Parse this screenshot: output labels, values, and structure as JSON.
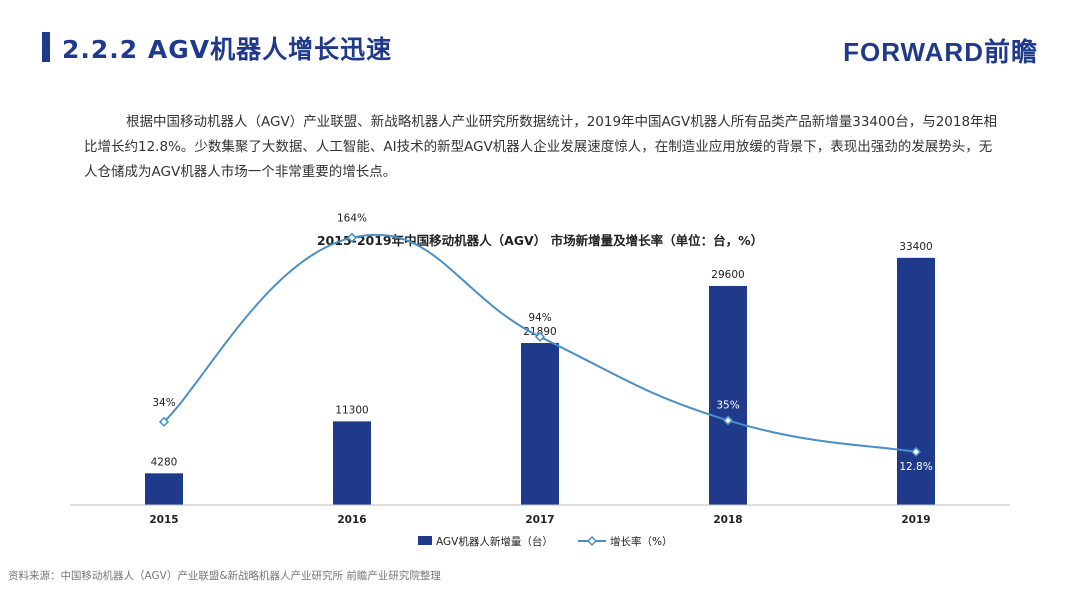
{
  "header": {
    "title": "2.2.2 AGV机器人增长迅速",
    "logo_text": "FORWARD前瞻"
  },
  "intro": {
    "text": "根据中国移动机器人（AGV）产业联盟、新战略机器人产业研究所数据统计，2019年中国AGV机器人所有品类产品新增量33400台，与2018年相比增长约12.8%。少数集聚了大数据、人工智能、AI技术的新型AGV机器人企业发展速度惊人，在制造业应用放缓的背景下，表现出强劲的发展势头，无人仓储成为AGV机器人市场一个非常重要的增长点。"
  },
  "colors": {
    "bar": "#1f3a8a",
    "line": "#4a90c8",
    "axis": "#bfbfbf"
  },
  "chart_data": {
    "type": "bar",
    "title": "2015-2019年中国移动机器人（AGV） 市场新增量及增长率（单位：台，%）",
    "categories": [
      "2015",
      "2016",
      "2017",
      "2018",
      "2019"
    ],
    "series": [
      {
        "name": "AGV机器人新增量（台）",
        "type": "bar",
        "values": [
          4280,
          11300,
          21890,
          29600,
          33400
        ],
        "labels": [
          "4280",
          "11300",
          "21890",
          "29600",
          "33400"
        ]
      },
      {
        "name": "增长率（%）",
        "type": "line",
        "values": [
          34,
          164,
          94,
          35,
          12.8
        ],
        "labels": [
          "34%",
          "164%",
          "94%",
          "35%",
          "12.8%"
        ]
      }
    ],
    "y_range": [
      0,
      35000
    ],
    "y2_range": [
      0,
      180
    ],
    "legend_position": "bottom",
    "grid": false
  },
  "source": {
    "text": "资料来源：中国移动机器人（AGV）产业联盟&新战略机器人产业研究所 前瞻产业研究院整理"
  }
}
